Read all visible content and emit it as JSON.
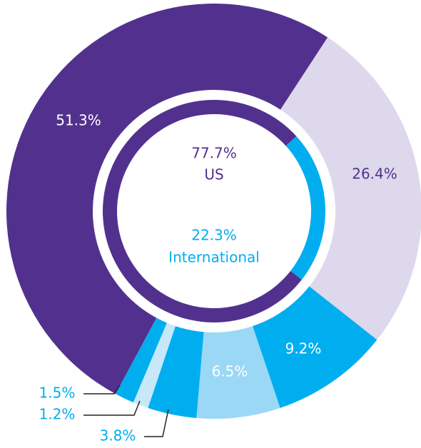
{
  "chart_data": [
    {
      "type": "donut",
      "values": [
        51.3,
        26.4,
        9.2,
        6.5,
        3.8,
        1.2,
        1.5
      ],
      "value_labels": [
        "51.3%",
        "26.4%",
        "9.2%",
        "6.5%",
        "3.8%",
        "1.2%",
        "1.5%"
      ],
      "colors": [
        "#52318e",
        "#ddd8ec",
        "#00aeef",
        "#9ad8f5",
        "#00aeef",
        "#c6e8f9",
        "#00aeef"
      ]
    },
    {
      "type": "donut",
      "categories": [
        "US",
        "International"
      ],
      "values": [
        77.7,
        22.3
      ],
      "value_labels": [
        "77.7%",
        "22.3%"
      ],
      "colors": [
        "#52318e",
        "#00aeef"
      ]
    }
  ]
}
